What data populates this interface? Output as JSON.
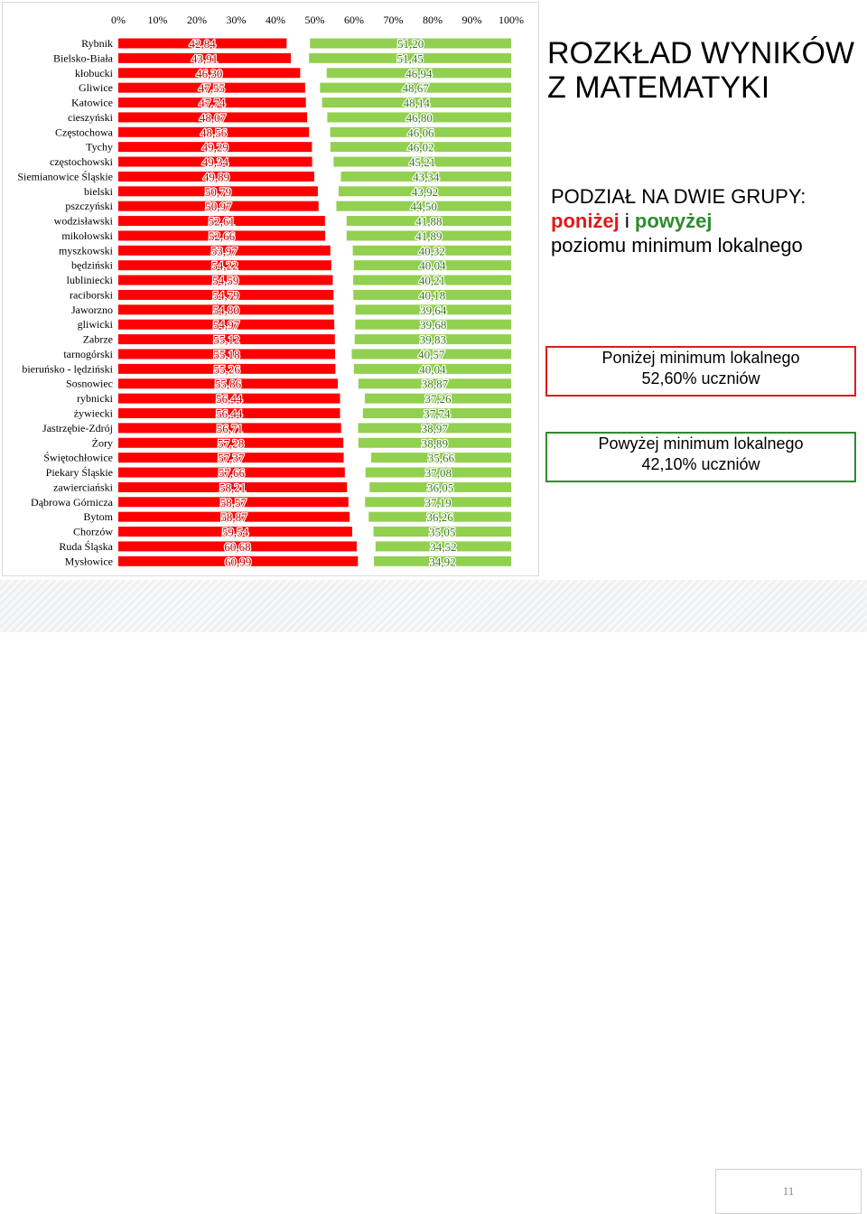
{
  "chart_data": {
    "type": "bar",
    "orientation": "horizontal",
    "stacked": false,
    "xlim": [
      0,
      100
    ],
    "x_ticks": [
      "0%",
      "10%",
      "20%",
      "30%",
      "40%",
      "50%",
      "60%",
      "70%",
      "80%",
      "90%",
      "100%"
    ],
    "categories": [
      "Rybnik",
      "Bielsko-Biała",
      "kłobucki",
      "Gliwice",
      "Katowice",
      "cieszyński",
      "Częstochowa",
      "Tychy",
      "częstochowski",
      "Siemianowice Śląskie",
      "bielski",
      "pszczyński",
      "wodzisławski",
      "mikołowski",
      "myszkowski",
      "będziński",
      "lubliniecki",
      "raciborski",
      "Jaworzno",
      "gliwicki",
      "Zabrze",
      "tarnogórski",
      "bieruńsko - lędziński",
      "Sosnowiec",
      "rybnicki",
      "żywiecki",
      "Jastrzębie-Zdrój",
      "Żory",
      "Świętochłowice",
      "Piekary Śląskie",
      "zawierciański",
      "Dąbrowa Górnicza",
      "Bytom",
      "Chorzów",
      "Ruda Śląska",
      "Mysłowice"
    ],
    "series": [
      {
        "values": [
          42.84,
          43.91,
          46.3,
          47.55,
          47.74,
          48.07,
          48.56,
          49.29,
          49.34,
          49.89,
          50.79,
          50.97,
          52.61,
          52.66,
          53.97,
          54.22,
          54.59,
          54.79,
          54.8,
          54.97,
          55.12,
          55.18,
          55.26,
          55.86,
          56.44,
          56.44,
          56.71,
          57.28,
          57.37,
          57.66,
          58.21,
          58.57,
          58.87,
          59.54,
          60.68,
          60.99
        ],
        "labels": [
          "42,84",
          "43,91",
          "46,30",
          "47,55",
          "47,74",
          "48,07",
          "48,56",
          "49,29",
          "49,34",
          "49,89",
          "50,79",
          "50,97",
          "52,61",
          "52,66",
          "53,97",
          "54,22",
          "54,59",
          "54,79",
          "54,80",
          "54,97",
          "55,12",
          "55,18",
          "55,26",
          "55,86",
          "56,44",
          "56,44",
          "56,71",
          "57,28",
          "57,37",
          "57,66",
          "58,21",
          "58,57",
          "58,87",
          "59,54",
          "60,68",
          "60,99"
        ],
        "color": "#ff0000"
      },
      {
        "values": [
          51.2,
          51.45,
          46.94,
          48.67,
          48.14,
          46.8,
          46.06,
          46.02,
          45.21,
          43.34,
          43.92,
          44.5,
          41.88,
          41.89,
          40.32,
          40.04,
          40.21,
          40.18,
          39.64,
          39.68,
          39.83,
          40.57,
          40.04,
          38.87,
          37.26,
          37.74,
          38.97,
          38.89,
          35.66,
          37.08,
          36.05,
          37.19,
          36.26,
          35.05,
          34.52,
          34.92
        ],
        "labels": [
          "51,20",
          "51,45",
          "46,94",
          "48,67",
          "48,14",
          "46,80",
          "46,06",
          "46,02",
          "45,21",
          "43,34",
          "43,92",
          "44,50",
          "41,88",
          "41,89",
          "40,32",
          "40,04",
          "40,21",
          "40,18",
          "39,64",
          "39,68",
          "39,83",
          "40,57",
          "40,04",
          "38,87",
          "37,26",
          "37,74",
          "38,97",
          "38,89",
          "35,66",
          "37,08",
          "36,05",
          "37,19",
          "36,26",
          "35,05",
          "34,52",
          "34,92"
        ],
        "color": "#92d050",
        "anchored": "right"
      }
    ],
    "legend": "none",
    "grid": false
  },
  "title": {
    "line1": "ROZKŁAD WYNIKÓW",
    "line2": "Z MATEMATYKI"
  },
  "subtitle": {
    "line1": "PODZIAŁ NA DWIE GRUPY:",
    "below_word": "poniżej",
    "connector": "i",
    "above_word": "powyżej",
    "line3": "poziomu minimum lokalnego"
  },
  "box_below": {
    "line1": "Poniżej minimum lokalnego",
    "line2": "52,60% uczniów",
    "color": "#e01b1b"
  },
  "box_above": {
    "line1": "Powyżej minimum lokalnego",
    "line2": "42,10% uczniów",
    "color": "#2e8b2e"
  },
  "page_number": "11"
}
